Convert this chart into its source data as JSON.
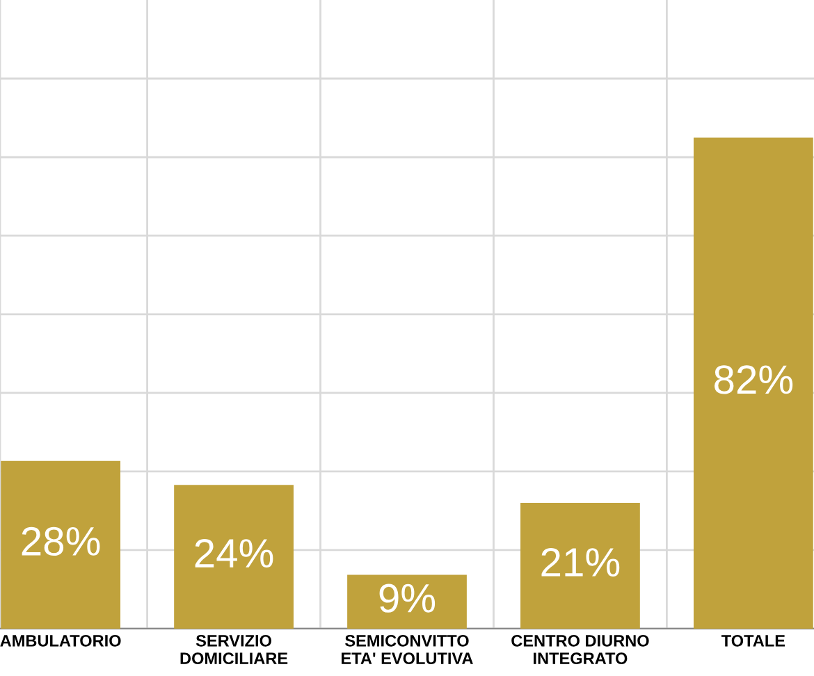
{
  "chart_data": {
    "type": "bar",
    "categories": [
      "AMBULATORIO",
      "SERVIZIO\nDOMICILIARE",
      "SEMICONVITTO\nETA' EVOLUTIVA",
      "CENTRO DIURNO\nINTEGRATO",
      "TOTALE"
    ],
    "series": [
      {
        "color": "#c0a23c",
        "values": [
          28,
          24,
          9,
          21,
          82
        ],
        "value_labels": [
          "28%",
          "24%",
          "9%",
          "21%",
          "82%"
        ]
      }
    ],
    "tick_labels": "x",
    "grid": true
  }
}
